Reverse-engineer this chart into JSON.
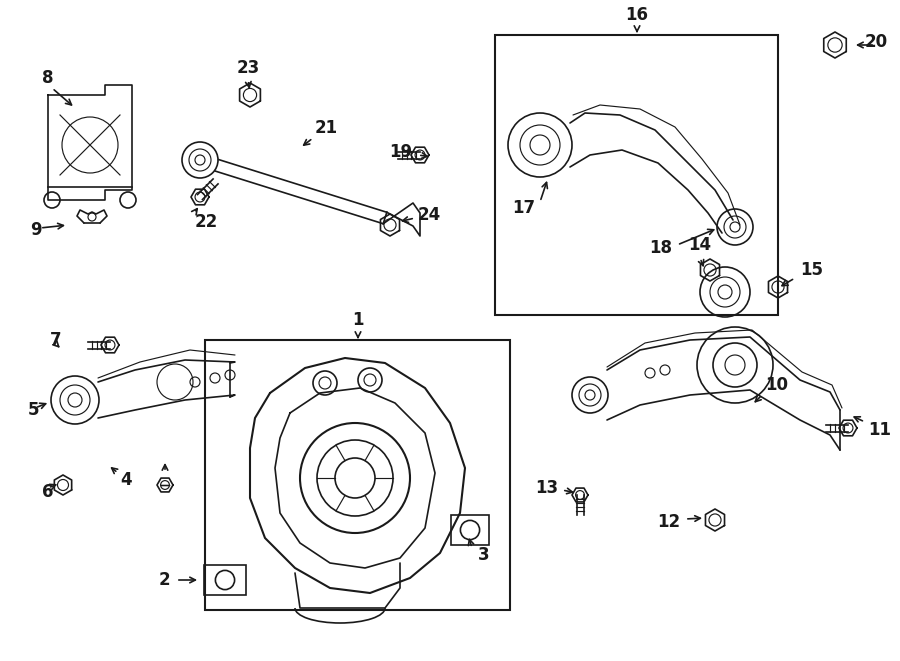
{
  "bg_color": "#ffffff",
  "line_color": "#1a1a1a",
  "lw": 1.2,
  "fig_width": 9.0,
  "fig_height": 6.61,
  "dpi": 100,
  "label_fs": 12
}
